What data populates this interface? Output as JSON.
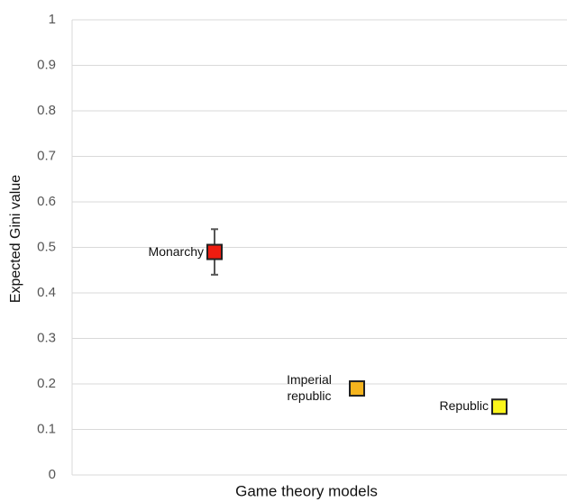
{
  "chart_data": {
    "type": "scatter",
    "categories": [
      "Monarchy",
      "Imperial republic",
      "Republic"
    ],
    "values": [
      0.49,
      0.19,
      0.15
    ],
    "errors": [
      0.05,
      null,
      null
    ],
    "colors": [
      "#ee1c10",
      "#f5b41e",
      "#fbf51c"
    ],
    "ylabel": "Expected Gini value",
    "xlabel": "Game theory models",
    "ylim": [
      0,
      1
    ],
    "yticks": [
      0,
      0.1,
      0.2,
      0.3,
      0.4,
      0.5,
      0.6,
      0.7,
      0.8,
      0.9,
      1
    ],
    "grid": true
  }
}
